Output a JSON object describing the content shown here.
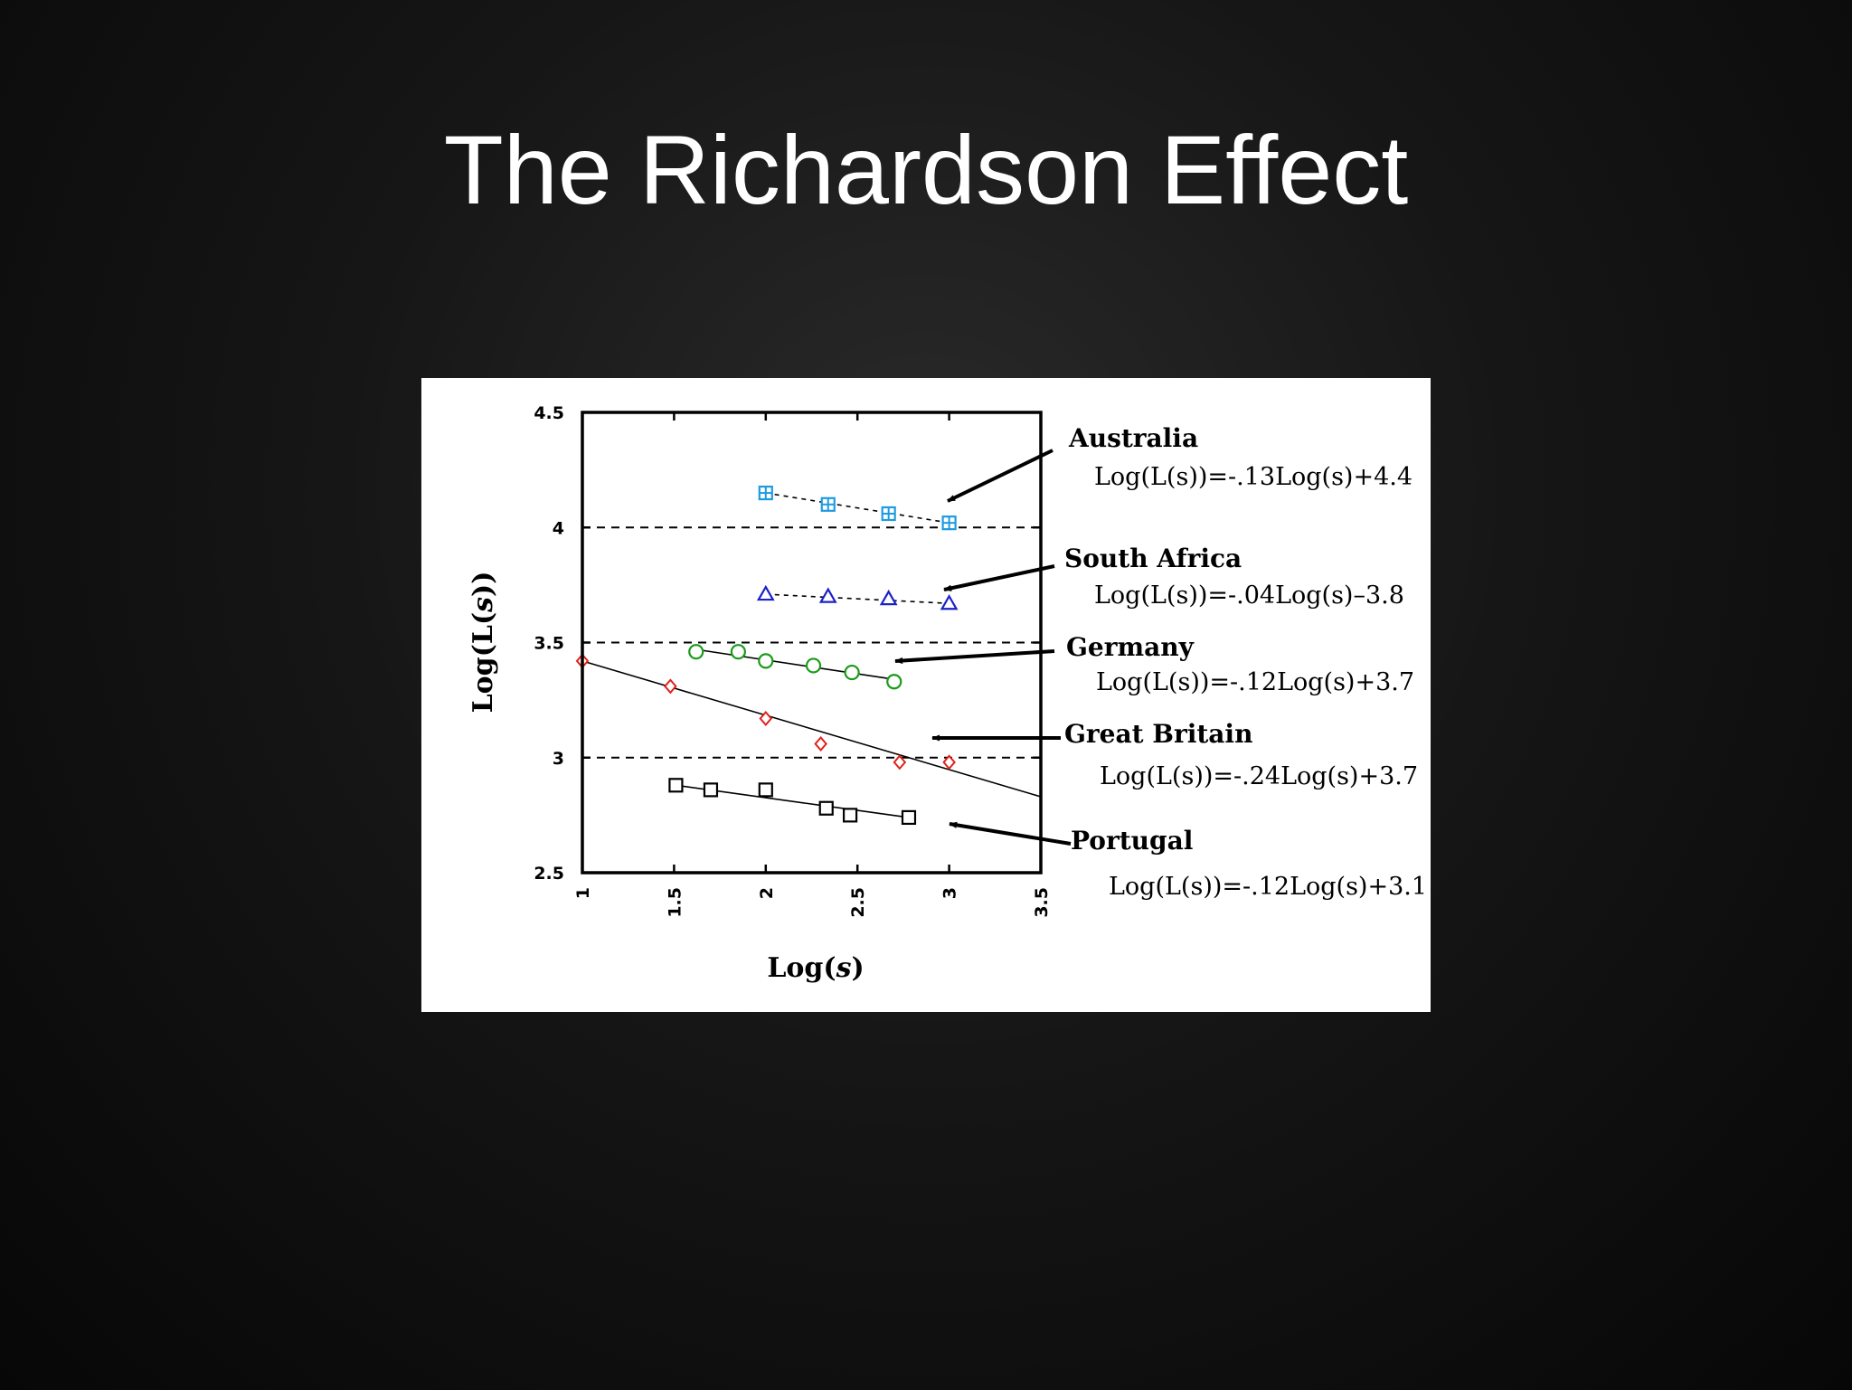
{
  "slide": {
    "title": "The Richardson Effect"
  },
  "chart_data": {
    "type": "scatter",
    "xlabel_parts": [
      "Log(",
      "s",
      ")"
    ],
    "ylabel_parts": [
      "Log(L(",
      "s",
      "))"
    ],
    "xlim": [
      1,
      3.5
    ],
    "ylim": [
      2.5,
      4.5
    ],
    "xticks": [
      1,
      1.5,
      2,
      2.5,
      3,
      3.5
    ],
    "xtick_labels": [
      "1",
      "1.5",
      "2",
      "2.5",
      "3",
      "3.5"
    ],
    "yticks": [
      2.5,
      3,
      3.5,
      4,
      4.5
    ],
    "ytick_labels": [
      "2.5",
      "3",
      "3.5",
      "4",
      "4.5"
    ],
    "reference_lines_y": [
      3,
      3.5,
      4
    ],
    "series": [
      {
        "name": "Australia",
        "equation": "Log(L(s))=-.13Log(s)+4.4",
        "marker": "square-plus",
        "color": "#1e9be0",
        "fit_style": "dashed",
        "x": [
          2.0,
          2.34,
          2.67,
          3.0
        ],
        "y": [
          4.15,
          4.1,
          4.06,
          4.02
        ],
        "fit": [
          [
            2.0,
            4.15
          ],
          [
            3.0,
            4.02
          ]
        ]
      },
      {
        "name": "South Africa",
        "equation": "Log(L(s))=-.04Log(s)–3.8",
        "marker": "triangle",
        "color": "#1a22c8",
        "fit_style": "dashed",
        "x": [
          2.0,
          2.34,
          2.67,
          3.0
        ],
        "y": [
          3.71,
          3.7,
          3.69,
          3.67
        ],
        "fit": [
          [
            2.0,
            3.71
          ],
          [
            3.0,
            3.67
          ]
        ]
      },
      {
        "name": "Germany",
        "equation": "Log(L(s))=-.12Log(s)+3.7",
        "marker": "circle",
        "color": "#1a9a1a",
        "fit_style": "solid",
        "x": [
          1.62,
          1.85,
          2.0,
          2.26,
          2.47,
          2.7
        ],
        "y": [
          3.46,
          3.46,
          3.42,
          3.4,
          3.37,
          3.33
        ],
        "fit": [
          [
            1.62,
            3.47
          ],
          [
            2.7,
            3.34
          ]
        ]
      },
      {
        "name": "Great Britain",
        "equation": "Log(L(s))=-.24Log(s)+3.7",
        "marker": "diamond",
        "color": "#e0201a",
        "fit_style": "solid",
        "x": [
          1.0,
          1.48,
          2.0,
          2.3,
          2.73,
          3.0
        ],
        "y": [
          3.42,
          3.31,
          3.17,
          3.06,
          2.98,
          2.98
        ],
        "fit": [
          [
            1.0,
            3.42
          ],
          [
            3.5,
            2.83
          ]
        ]
      },
      {
        "name": "Portugal",
        "equation": "Log(L(s))=-.12Log(s)+3.1",
        "marker": "square",
        "color": "#000000",
        "fit_style": "solid",
        "x": [
          1.51,
          1.7,
          2.0,
          2.33,
          2.46,
          2.78
        ],
        "y": [
          2.88,
          2.86,
          2.86,
          2.78,
          2.75,
          2.74
        ],
        "fit": [
          [
            1.51,
            2.88
          ],
          [
            2.78,
            2.74
          ]
        ]
      }
    ]
  }
}
